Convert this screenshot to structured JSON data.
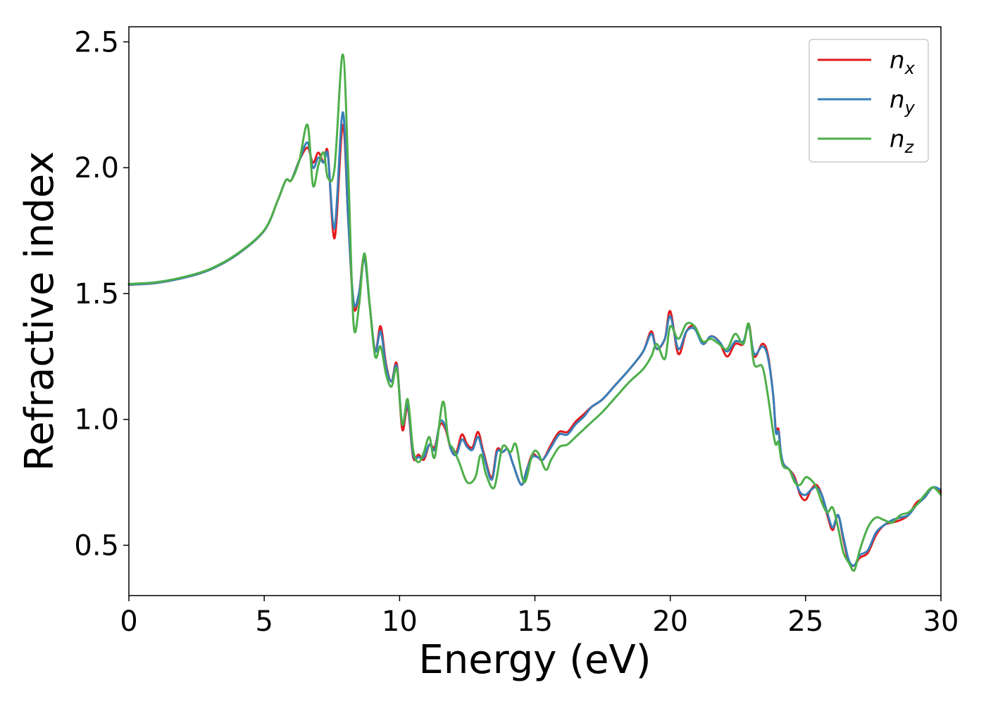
{
  "chart_data": {
    "type": "line",
    "title": "",
    "xlabel": "Energy (eV)",
    "ylabel": "Refractive index",
    "xlim": [
      0,
      30
    ],
    "ylim": [
      0.3,
      2.56
    ],
    "xticks": [
      0,
      5,
      10,
      15,
      20,
      25,
      30
    ],
    "yticks": [
      0.5,
      1.0,
      1.5,
      2.0,
      2.5
    ],
    "grid": false,
    "legend_position": "top-right",
    "series": [
      {
        "name": "n",
        "subscript": "x",
        "color": "#e41a1c",
        "x": [
          0,
          1,
          2,
          3,
          4,
          5,
          5.5,
          5.8,
          6.0,
          6.3,
          6.6,
          6.8,
          7.0,
          7.2,
          7.35,
          7.6,
          7.9,
          8.1,
          8.3,
          8.5,
          8.7,
          8.9,
          9.1,
          9.3,
          9.5,
          9.7,
          9.9,
          10.1,
          10.3,
          10.5,
          10.7,
          10.9,
          11.1,
          11.3,
          11.5,
          11.7,
          11.9,
          12.1,
          12.3,
          12.5,
          12.7,
          12.9,
          13.1,
          13.4,
          13.6,
          13.8,
          14.0,
          14.2,
          14.5,
          14.7,
          14.9,
          15.1,
          15.3,
          15.6,
          15.9,
          16.2,
          16.5,
          16.8,
          17.1,
          17.5,
          18.0,
          18.5,
          19.0,
          19.3,
          19.5,
          19.8,
          20.0,
          20.3,
          20.6,
          20.9,
          21.2,
          21.5,
          21.8,
          22.1,
          22.4,
          22.7,
          22.9,
          23.1,
          23.4,
          23.6,
          23.8,
          23.9,
          24.0,
          24.1,
          24.2,
          24.4,
          24.6,
          24.8,
          25.0,
          25.2,
          25.4,
          25.6,
          25.8,
          26.0,
          26.2,
          26.4,
          26.6,
          26.8,
          27.0,
          27.3,
          27.6,
          27.9,
          28.2,
          28.5,
          28.8,
          29.1,
          29.4,
          29.7,
          30
        ],
        "y": [
          1.535,
          1.542,
          1.562,
          1.595,
          1.655,
          1.75,
          1.87,
          1.95,
          1.95,
          2.03,
          2.08,
          2.02,
          2.06,
          2.02,
          2.06,
          1.72,
          2.17,
          1.8,
          1.45,
          1.5,
          1.65,
          1.45,
          1.27,
          1.37,
          1.22,
          1.15,
          1.22,
          0.96,
          1.05,
          0.85,
          0.86,
          0.84,
          0.9,
          0.89,
          0.98,
          0.96,
          0.88,
          0.87,
          0.94,
          0.9,
          0.89,
          0.95,
          0.87,
          0.77,
          0.88,
          0.87,
          0.88,
          0.82,
          0.74,
          0.8,
          0.86,
          0.85,
          0.84,
          0.9,
          0.95,
          0.95,
          0.99,
          1.02,
          1.05,
          1.08,
          1.14,
          1.2,
          1.27,
          1.35,
          1.28,
          1.32,
          1.43,
          1.26,
          1.35,
          1.37,
          1.3,
          1.33,
          1.31,
          1.25,
          1.3,
          1.3,
          1.38,
          1.25,
          1.3,
          1.26,
          1.1,
          0.96,
          0.96,
          0.85,
          0.82,
          0.8,
          0.77,
          0.7,
          0.68,
          0.72,
          0.74,
          0.7,
          0.62,
          0.56,
          0.62,
          0.52,
          0.43,
          0.42,
          0.45,
          0.47,
          0.54,
          0.58,
          0.59,
          0.6,
          0.62,
          0.67,
          0.69,
          0.73,
          0.71
        ]
      },
      {
        "name": "n",
        "subscript": "y",
        "color": "#377eb8",
        "x": [
          0,
          1,
          2,
          3,
          4,
          5,
          5.5,
          5.8,
          6.0,
          6.3,
          6.6,
          6.8,
          7.0,
          7.2,
          7.35,
          7.6,
          7.9,
          8.1,
          8.3,
          8.5,
          8.7,
          8.9,
          9.1,
          9.3,
          9.5,
          9.7,
          9.9,
          10.1,
          10.3,
          10.5,
          10.7,
          10.9,
          11.1,
          11.3,
          11.5,
          11.7,
          11.9,
          12.1,
          12.3,
          12.5,
          12.7,
          12.9,
          13.1,
          13.4,
          13.6,
          13.8,
          14.0,
          14.2,
          14.5,
          14.7,
          14.9,
          15.1,
          15.3,
          15.6,
          15.9,
          16.2,
          16.5,
          16.8,
          17.1,
          17.5,
          18.0,
          18.5,
          19.0,
          19.3,
          19.5,
          19.8,
          20.0,
          20.3,
          20.6,
          20.9,
          21.2,
          21.5,
          21.8,
          22.1,
          22.4,
          22.7,
          22.9,
          23.1,
          23.4,
          23.6,
          23.8,
          23.9,
          24.0,
          24.1,
          24.2,
          24.4,
          24.6,
          24.8,
          25.0,
          25.2,
          25.4,
          25.6,
          25.8,
          26.0,
          26.2,
          26.4,
          26.6,
          26.8,
          27.0,
          27.3,
          27.6,
          27.9,
          28.2,
          28.5,
          28.8,
          29.1,
          29.4,
          29.7,
          30
        ],
        "y": [
          1.535,
          1.542,
          1.562,
          1.595,
          1.655,
          1.75,
          1.87,
          1.95,
          1.95,
          2.03,
          2.1,
          2.0,
          2.04,
          2.02,
          2.05,
          1.76,
          2.22,
          1.8,
          1.47,
          1.5,
          1.64,
          1.45,
          1.27,
          1.35,
          1.21,
          1.15,
          1.21,
          0.98,
          1.06,
          0.86,
          0.85,
          0.85,
          0.9,
          0.88,
          0.99,
          0.97,
          0.88,
          0.86,
          0.92,
          0.89,
          0.88,
          0.93,
          0.86,
          0.76,
          0.87,
          0.87,
          0.88,
          0.82,
          0.74,
          0.8,
          0.85,
          0.85,
          0.84,
          0.89,
          0.94,
          0.94,
          0.98,
          1.01,
          1.05,
          1.08,
          1.14,
          1.2,
          1.27,
          1.34,
          1.28,
          1.32,
          1.41,
          1.28,
          1.35,
          1.36,
          1.3,
          1.33,
          1.31,
          1.27,
          1.31,
          1.31,
          1.37,
          1.26,
          1.29,
          1.25,
          1.1,
          0.95,
          0.95,
          0.86,
          0.82,
          0.8,
          0.76,
          0.71,
          0.7,
          0.72,
          0.73,
          0.7,
          0.63,
          0.57,
          0.62,
          0.53,
          0.44,
          0.42,
          0.46,
          0.48,
          0.55,
          0.58,
          0.6,
          0.61,
          0.62,
          0.66,
          0.69,
          0.73,
          0.72
        ]
      },
      {
        "name": "n",
        "subscript": "z",
        "color": "#4daf4a",
        "x": [
          0,
          1,
          2,
          3,
          4,
          5,
          5.5,
          5.8,
          6.0,
          6.3,
          6.6,
          6.8,
          7.0,
          7.2,
          7.35,
          7.6,
          7.9,
          8.1,
          8.3,
          8.5,
          8.7,
          8.9,
          9.1,
          9.3,
          9.5,
          9.7,
          9.9,
          10.1,
          10.3,
          10.5,
          10.7,
          10.9,
          11.1,
          11.3,
          11.6,
          11.8,
          12.0,
          12.2,
          12.5,
          12.8,
          13.0,
          13.2,
          13.5,
          13.8,
          14.1,
          14.3,
          14.6,
          14.9,
          15.1,
          15.4,
          15.6,
          15.9,
          16.2,
          16.5,
          16.8,
          17.1,
          17.5,
          18.0,
          18.5,
          19.0,
          19.3,
          19.5,
          19.8,
          20.0,
          20.3,
          20.6,
          20.9,
          21.2,
          21.5,
          21.8,
          22.1,
          22.4,
          22.7,
          22.9,
          23.1,
          23.4,
          23.6,
          23.8,
          23.9,
          24.0,
          24.1,
          24.2,
          24.4,
          24.6,
          24.8,
          25.0,
          25.2,
          25.4,
          25.6,
          25.8,
          26.0,
          26.2,
          26.4,
          26.6,
          26.8,
          27.0,
          27.3,
          27.6,
          27.9,
          28.2,
          28.5,
          28.8,
          29.1,
          29.4,
          29.7,
          30
        ],
        "y": [
          1.538,
          1.545,
          1.565,
          1.598,
          1.658,
          1.752,
          1.87,
          1.95,
          1.95,
          2.03,
          2.17,
          1.93,
          2.01,
          2.06,
          1.96,
          2.0,
          2.45,
          2.0,
          1.38,
          1.45,
          1.66,
          1.45,
          1.25,
          1.29,
          1.18,
          1.13,
          1.2,
          0.98,
          1.08,
          0.88,
          0.83,
          0.87,
          0.93,
          0.85,
          1.07,
          0.92,
          0.88,
          0.83,
          0.75,
          0.77,
          0.86,
          0.78,
          0.73,
          0.89,
          0.87,
          0.9,
          0.75,
          0.86,
          0.87,
          0.8,
          0.84,
          0.89,
          0.9,
          0.93,
          0.96,
          0.99,
          1.03,
          1.09,
          1.15,
          1.2,
          1.25,
          1.3,
          1.24,
          1.37,
          1.32,
          1.38,
          1.37,
          1.31,
          1.32,
          1.3,
          1.28,
          1.34,
          1.3,
          1.38,
          1.22,
          1.21,
          1.1,
          0.95,
          0.9,
          0.91,
          0.84,
          0.81,
          0.8,
          0.75,
          0.74,
          0.77,
          0.76,
          0.73,
          0.67,
          0.63,
          0.65,
          0.57,
          0.47,
          0.43,
          0.4,
          0.48,
          0.57,
          0.61,
          0.6,
          0.59,
          0.62,
          0.63,
          0.66,
          0.7,
          0.73,
          0.7
        ]
      }
    ]
  }
}
